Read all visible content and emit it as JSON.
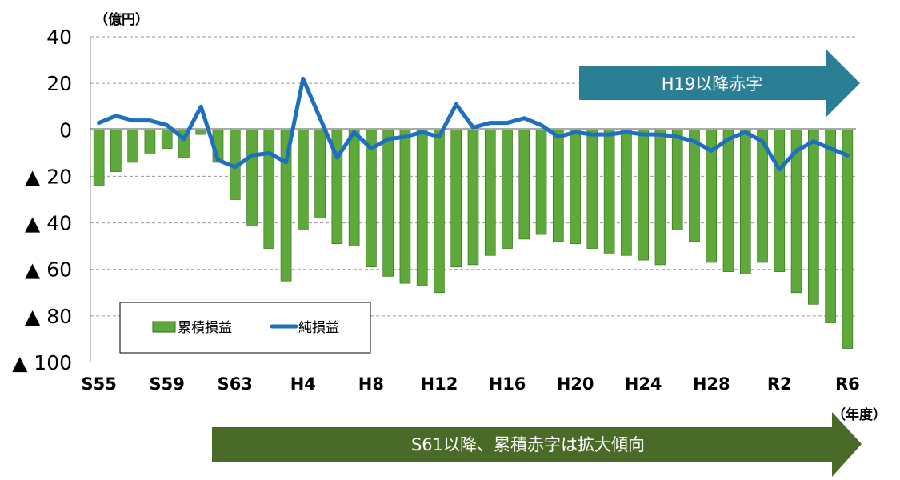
{
  "chart_data": {
    "type": "bar",
    "y_unit": "（億円）",
    "x_unit": "（年度）",
    "ylim": [
      -100,
      40
    ],
    "y_ticks": [
      {
        "value": 40,
        "label": "40"
      },
      {
        "value": 20,
        "label": "20"
      },
      {
        "value": 0,
        "label": "0"
      },
      {
        "value": -20,
        "label": "▲ 20"
      },
      {
        "value": -40,
        "label": "▲ 40"
      },
      {
        "value": -60,
        "label": "▲ 60"
      },
      {
        "value": -80,
        "label": "▲ 80"
      },
      {
        "value": -100,
        "label": "▲ 100"
      }
    ],
    "grid": true,
    "categories": [
      "S55",
      "S56",
      "S57",
      "S58",
      "S59",
      "S60",
      "S61",
      "S62",
      "S63",
      "H1",
      "H2",
      "H3",
      "H4",
      "H5",
      "H6",
      "H7",
      "H8",
      "H9",
      "H10",
      "H11",
      "H12",
      "H13",
      "H14",
      "H15",
      "H16",
      "H17",
      "H18",
      "H19",
      "H20",
      "H21",
      "H22",
      "H23",
      "H24",
      "H25",
      "H26",
      "H27",
      "H28",
      "H29",
      "H30",
      "R1",
      "R2",
      "R3",
      "R4",
      "R5",
      "R6"
    ],
    "x_tick_labels": [
      "S55",
      "S59",
      "S63",
      "H4",
      "H8",
      "H12",
      "H16",
      "H20",
      "H24",
      "H28",
      "R2",
      "R6"
    ],
    "x_tick_indices": [
      0,
      4,
      8,
      12,
      16,
      20,
      24,
      28,
      32,
      36,
      40,
      44
    ],
    "series": [
      {
        "name": "累積損益",
        "kind": "bar",
        "color": "#5fa83a",
        "values": [
          -24,
          -18,
          -14,
          -10,
          -8,
          -12,
          -2,
          -14,
          -30,
          -41,
          -51,
          -65,
          -43,
          -38,
          -49,
          -50,
          -59,
          -63,
          -66,
          -67,
          -70,
          -59,
          -58,
          -54,
          -51,
          -47,
          -45,
          -48,
          -49,
          -51,
          -53,
          -54,
          -56,
          -58,
          -43,
          -48,
          -57,
          -61,
          -62,
          -57,
          -61,
          -70,
          -75,
          -83,
          -94
        ]
      },
      {
        "name": "純損益",
        "kind": "line",
        "color": "#1f6fc0",
        "values": [
          3,
          6,
          4,
          4,
          2,
          -4,
          10,
          -13,
          -16,
          -11,
          -10,
          -14,
          22,
          5,
          -12,
          -1,
          -8,
          -4,
          -3,
          -1,
          -3,
          11,
          1,
          3,
          3,
          5,
          2,
          -3,
          -1,
          -2,
          -2,
          -1,
          -2,
          -2,
          -3,
          -5,
          -9,
          -4,
          -1,
          -5,
          -17,
          -9,
          -5,
          -8,
          -11
        ]
      }
    ],
    "legend_position": "bottom-left",
    "annotations": [
      {
        "text": "H19以降赤字",
        "color": "#2b7f94"
      },
      {
        "text": "S61以降、累積赤字は拡大傾向",
        "color": "#4a6a27"
      }
    ]
  }
}
